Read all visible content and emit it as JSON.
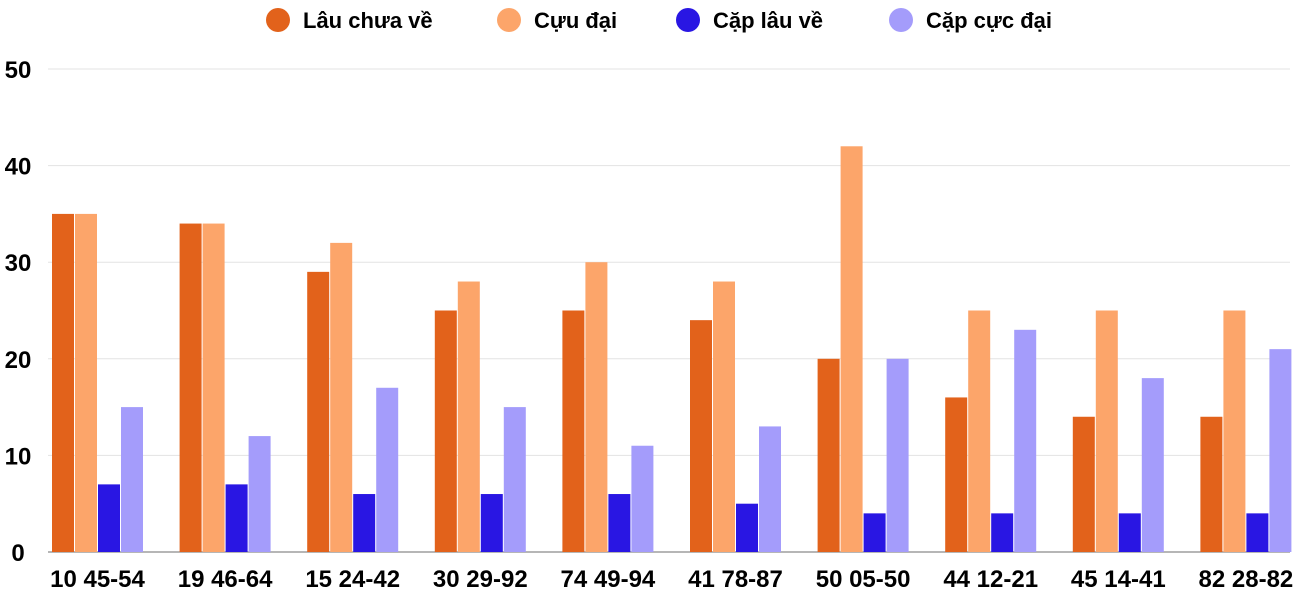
{
  "chart_data": {
    "type": "bar",
    "categories": [
      "10 45-54",
      "19 46-64",
      "15 24-42",
      "30 29-92",
      "74 49-94",
      "41 78-87",
      "50 05-50",
      "44 12-21",
      "45 14-41",
      "82 28-82"
    ],
    "series": [
      {
        "name": "Lâu chưa về",
        "color": "#e2621b",
        "values": [
          35,
          34,
          29,
          25,
          25,
          24,
          20,
          16,
          14,
          14
        ]
      },
      {
        "name": "Cựu đại",
        "color": "#fca56a",
        "values": [
          35,
          34,
          32,
          28,
          30,
          28,
          42,
          25,
          25,
          25
        ]
      },
      {
        "name": "Cặp lâu về",
        "color": "#2916e3",
        "values": [
          7,
          7,
          6,
          6,
          6,
          5,
          4,
          4,
          4,
          4
        ]
      },
      {
        "name": "Cặp cực đại",
        "color": "#a49cfb",
        "values": [
          15,
          12,
          17,
          15,
          11,
          13,
          20,
          23,
          18,
          21
        ]
      }
    ],
    "yticks": [
      "0",
      "10",
      "20",
      "30",
      "40",
      "50"
    ],
    "ylim": [
      0,
      50
    ],
    "grid": true,
    "legend_position": "top-center"
  }
}
